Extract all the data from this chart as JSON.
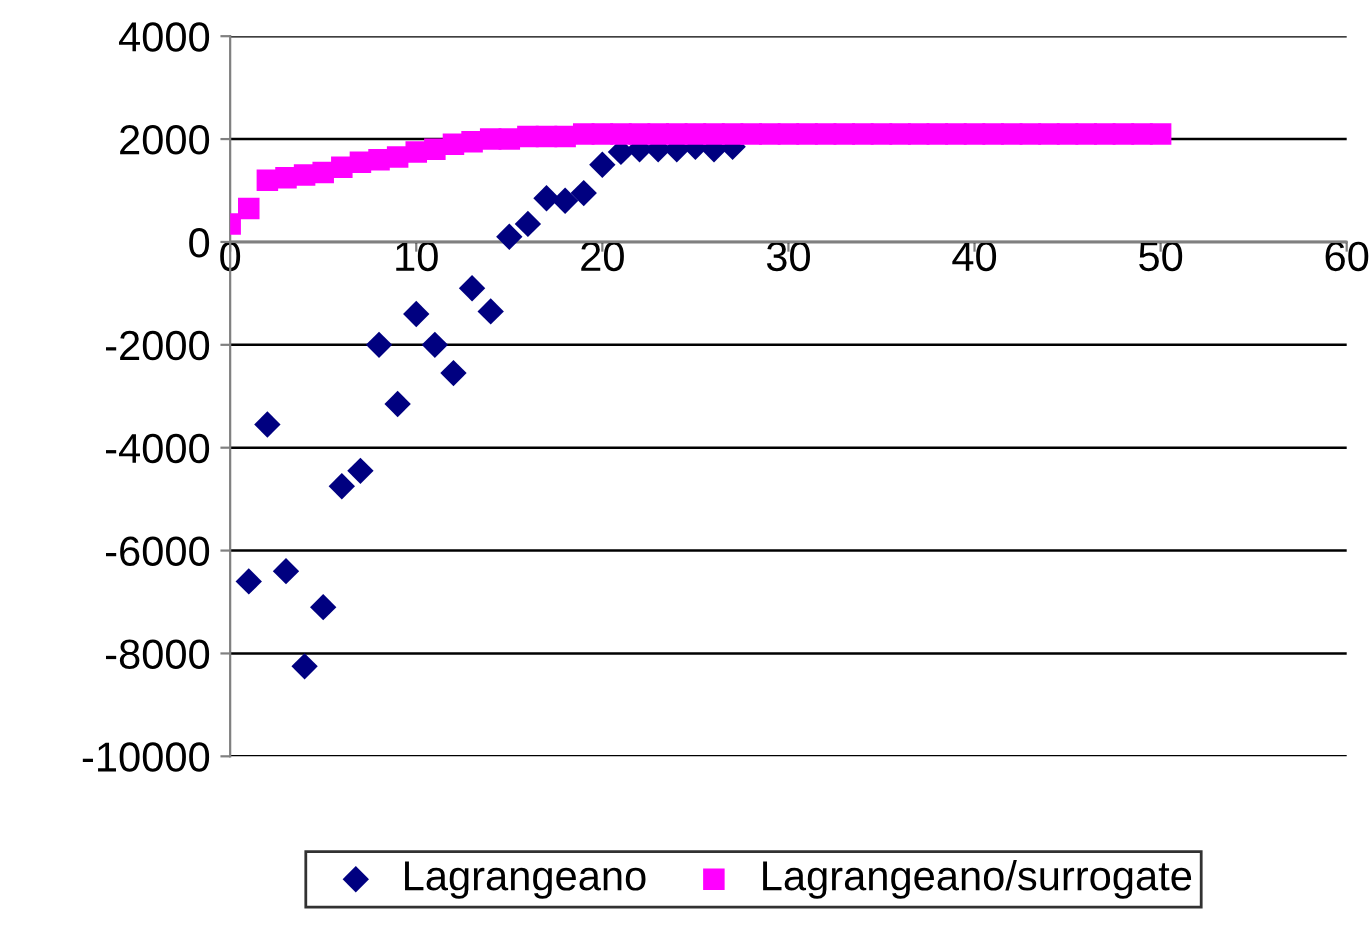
{
  "chart_data": {
    "type": "scatter",
    "xlim": [
      0,
      60
    ],
    "xticks": [
      0,
      10,
      20,
      30,
      40,
      50,
      60
    ],
    "ylim": [
      -10000,
      4000
    ],
    "yticks": [
      -10000,
      -8000,
      -6000,
      -4000,
      -2000,
      0,
      2000,
      4000
    ],
    "grid": "y",
    "legend": "bottom",
    "series": [
      {
        "name": "Lagrangeano",
        "color": "#000080",
        "marker": "diamond",
        "x": [
          1,
          2,
          3,
          4,
          5,
          6,
          7,
          8,
          9,
          10,
          11,
          12,
          13,
          14,
          15,
          16,
          17,
          18,
          19,
          20,
          21,
          22,
          23,
          24,
          25,
          26,
          27
        ],
        "values": [
          -6600,
          -3550,
          -6400,
          -8250,
          -7100,
          -4750,
          -4450,
          -2000,
          -3150,
          -1400,
          -2000,
          -2550,
          -900,
          -1350,
          100,
          350,
          850,
          800,
          950,
          1500,
          1750,
          1800,
          1800,
          1800,
          1850,
          1800,
          1850
        ]
      },
      {
        "name": "Lagrangeano/surrogate",
        "color": "#ff00ff",
        "marker": "square",
        "x": [
          0,
          1,
          2,
          3,
          4,
          5,
          6,
          7,
          8,
          9,
          10,
          11,
          12,
          13,
          14,
          15,
          16,
          17,
          18,
          19,
          20,
          21,
          22,
          23,
          24,
          25,
          26,
          27,
          28,
          29,
          30,
          31,
          32,
          33,
          34,
          35,
          36,
          37,
          38,
          39,
          40,
          41,
          42,
          43,
          44,
          45,
          46,
          47,
          48,
          49,
          50
        ],
        "values": [
          350,
          650,
          1200,
          1250,
          1300,
          1350,
          1450,
          1550,
          1600,
          1650,
          1750,
          1800,
          1900,
          1950,
          2000,
          2000,
          2050,
          2050,
          2050,
          2100,
          2100,
          2100,
          2100,
          2100,
          2100,
          2100,
          2100,
          2100,
          2100,
          2100,
          2100,
          2100,
          2100,
          2100,
          2100,
          2100,
          2100,
          2100,
          2100,
          2100,
          2100,
          2100,
          2100,
          2100,
          2100,
          2100,
          2100,
          2100,
          2100,
          2100,
          2100
        ]
      }
    ]
  }
}
